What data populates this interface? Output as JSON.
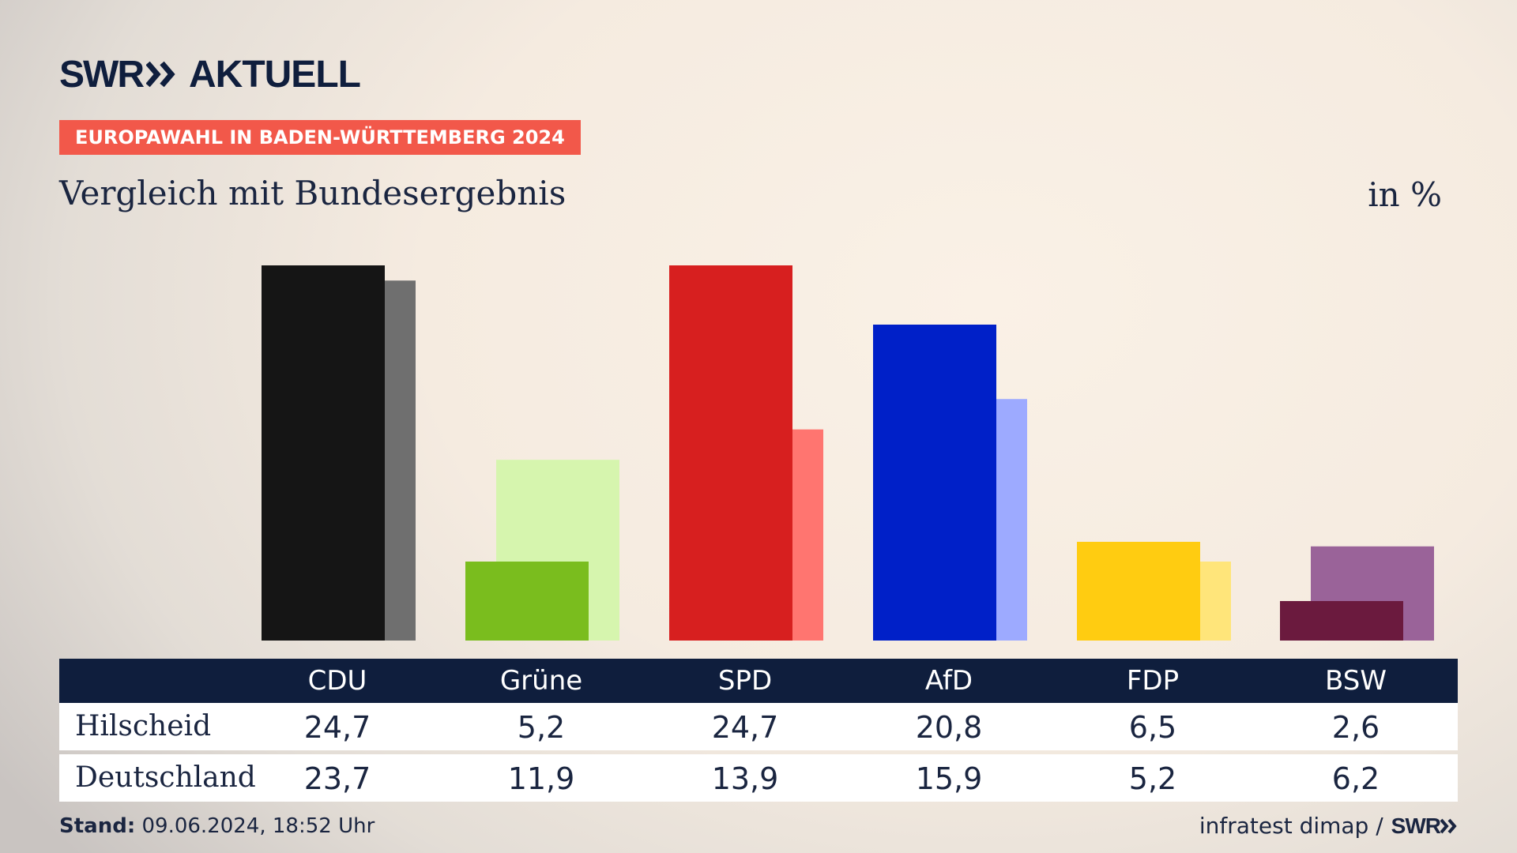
{
  "brand": {
    "logo_text": "SWR",
    "product": "AKTUELL"
  },
  "badge": "EUROPAWAHL IN BADEN-WÜRTTEMBERG 2024",
  "subtitle": "Vergleich mit Bundesergebnis",
  "unit": "in %",
  "colors": {
    "header_bg": "#0f1e3d",
    "badge_bg": "#f2584a",
    "text": "#1a2540"
  },
  "chart_data": {
    "type": "bar",
    "categories": [
      "CDU",
      "Grüne",
      "SPD",
      "AfD",
      "FDP",
      "BSW"
    ],
    "series": [
      {
        "name": "Hilscheid",
        "values": [
          24.7,
          5.2,
          24.7,
          20.8,
          6.5,
          2.6
        ],
        "colors": [
          "#151515",
          "#7abd1e",
          "#d71f1f",
          "#0020c8",
          "#ffcc11",
          "#6b1a3e"
        ]
      },
      {
        "name": "Deutschland",
        "values": [
          23.7,
          11.9,
          13.9,
          15.9,
          5.2,
          6.2
        ],
        "colors": [
          "#6f6f6f",
          "#d6f5ae",
          "#ff7570",
          "#9daaff",
          "#ffe57a",
          "#9a6399"
        ]
      }
    ],
    "ylim": [
      0,
      24.7
    ]
  },
  "table": {
    "rows": [
      {
        "label": "Hilscheid",
        "values": [
          "24,7",
          "5,2",
          "24,7",
          "20,8",
          "6,5",
          "2,6"
        ]
      },
      {
        "label": "Deutschland",
        "values": [
          "23,7",
          "11,9",
          "13,9",
          "15,9",
          "5,2",
          "6,2"
        ]
      }
    ]
  },
  "footer": {
    "stand_label": "Stand:",
    "stand_value": "09.06.2024, 18:52 Uhr",
    "source": "infratest dimap /",
    "source_brand": "SWR"
  }
}
